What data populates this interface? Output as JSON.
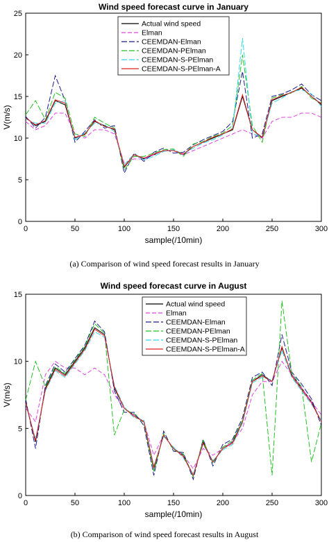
{
  "chart_data": [
    {
      "type": "line",
      "title": "Wind speed forecast curve in January",
      "xlabel": "sample(/10min)",
      "ylabel": "V(m/s)",
      "xlim": [
        0,
        300
      ],
      "ylim": [
        0,
        25
      ],
      "xticks": [
        "0",
        "50",
        "100",
        "150",
        "200",
        "250",
        "300"
      ],
      "yticks": [
        "0",
        "5",
        "10",
        "15",
        "20",
        "25"
      ],
      "grid": false,
      "legend_position": "top-center",
      "caption": "(a) Comparison of wind speed forecast results in January",
      "x": [
        0,
        10,
        20,
        30,
        40,
        50,
        60,
        70,
        80,
        90,
        100,
        110,
        120,
        130,
        140,
        150,
        160,
        170,
        180,
        190,
        200,
        210,
        220,
        230,
        240,
        250,
        260,
        270,
        280,
        290,
        300
      ],
      "series": [
        {
          "name": "Actual wind speed",
          "color": "#000000",
          "dash": "",
          "values": [
            12.5,
            11.5,
            12.0,
            14.5,
            14.0,
            10.0,
            10.5,
            12.0,
            11.5,
            11.0,
            6.5,
            8.0,
            7.5,
            8.0,
            8.5,
            8.5,
            8.0,
            9.0,
            9.5,
            10.0,
            10.5,
            11.0,
            15.0,
            11.0,
            10.0,
            14.5,
            15.0,
            15.5,
            16.0,
            15.0,
            14.0
          ]
        },
        {
          "name": "Elman",
          "color": "#e040e0",
          "dash": "6,3",
          "values": [
            12.0,
            11.0,
            11.5,
            13.0,
            13.0,
            10.5,
            10.0,
            11.0,
            11.0,
            10.5,
            7.0,
            7.5,
            7.5,
            8.0,
            8.5,
            8.5,
            8.0,
            8.5,
            9.0,
            9.5,
            10.0,
            10.5,
            11.0,
            10.5,
            10.0,
            12.0,
            12.5,
            12.5,
            13.0,
            13.0,
            12.5
          ]
        },
        {
          "name": "CEEMDAN-Elman",
          "color": "#1a1a8c",
          "dash": "8,3",
          "values": [
            12.6,
            11.2,
            12.5,
            17.5,
            14.5,
            9.5,
            10.8,
            12.2,
            11.2,
            11.5,
            5.8,
            8.2,
            7.2,
            8.3,
            8.8,
            8.2,
            8.3,
            9.2,
            9.8,
            10.3,
            10.8,
            12.0,
            18.0,
            10.0,
            10.5,
            15.0,
            15.3,
            15.8,
            16.5,
            15.2,
            14.5
          ]
        },
        {
          "name": "CEEMDAN-PElman",
          "color": "#22c022",
          "dash": "8,3",
          "values": [
            12.8,
            14.5,
            12.2,
            15.5,
            14.8,
            10.5,
            10.2,
            12.5,
            11.8,
            11.2,
            6.2,
            7.8,
            7.8,
            8.2,
            8.6,
            8.7,
            7.8,
            9.3,
            9.6,
            10.2,
            10.6,
            11.5,
            20.0,
            11.5,
            9.5,
            14.8,
            15.2,
            15.4,
            16.2,
            14.8,
            14.2
          ]
        },
        {
          "name": "CEEMDAN-S-PElman",
          "color": "#30d8e8",
          "dash": "8,3",
          "values": [
            12.3,
            11.8,
            11.8,
            14.2,
            14.5,
            9.8,
            10.6,
            11.8,
            11.6,
            10.8,
            6.8,
            8.1,
            7.4,
            7.8,
            8.4,
            8.6,
            8.1,
            8.8,
            9.4,
            9.8,
            10.4,
            11.2,
            22.0,
            10.5,
            10.2,
            14.2,
            14.8,
            15.6,
            15.8,
            15.3,
            13.8
          ]
        },
        {
          "name": "CEEMDAN-S-PElman-A",
          "color": "#e02020",
          "dash": "",
          "values": [
            12.4,
            11.6,
            12.1,
            14.6,
            14.2,
            10.1,
            10.4,
            12.1,
            11.4,
            11.1,
            6.6,
            8.0,
            7.6,
            8.1,
            8.5,
            8.5,
            8.1,
            9.0,
            9.5,
            10.1,
            10.5,
            11.1,
            15.2,
            11.0,
            10.1,
            14.6,
            15.1,
            15.5,
            16.1,
            15.0,
            14.1
          ]
        }
      ]
    },
    {
      "type": "line",
      "title": "Wind speed forecast curve in August",
      "xlabel": "sample(/10min)",
      "ylabel": "V(m/s)",
      "xlim": [
        0,
        300
      ],
      "ylim": [
        0,
        15
      ],
      "xticks": [
        "0",
        "50",
        "100",
        "150",
        "200",
        "250",
        "300"
      ],
      "yticks": [
        "0",
        "5",
        "10",
        "15"
      ],
      "grid": false,
      "legend_position": "top-right",
      "caption": "(b) Comparison of wind speed forecast results in August",
      "x": [
        0,
        10,
        20,
        30,
        40,
        50,
        60,
        70,
        80,
        90,
        100,
        110,
        120,
        130,
        140,
        150,
        160,
        170,
        180,
        190,
        200,
        210,
        220,
        230,
        240,
        250,
        260,
        270,
        280,
        290,
        300
      ],
      "series": [
        {
          "name": "Actual wind speed",
          "color": "#000000",
          "dash": "",
          "values": [
            7.0,
            4.0,
            8.0,
            9.5,
            9.0,
            10.0,
            11.0,
            12.5,
            12.0,
            8.0,
            6.5,
            6.0,
            5.5,
            2.0,
            4.5,
            3.5,
            3.0,
            1.5,
            4.0,
            2.5,
            3.5,
            4.0,
            5.5,
            8.5,
            9.0,
            8.5,
            11.0,
            9.0,
            8.0,
            7.0,
            5.5
          ]
        },
        {
          "name": "Elman",
          "color": "#e040e0",
          "dash": "6,3",
          "values": [
            6.5,
            5.5,
            9.0,
            10.0,
            9.5,
            9.5,
            9.0,
            9.5,
            9.0,
            7.5,
            6.5,
            6.0,
            5.5,
            3.0,
            4.5,
            3.5,
            3.0,
            2.0,
            3.5,
            3.0,
            3.5,
            4.0,
            5.0,
            7.5,
            8.5,
            8.5,
            10.0,
            9.0,
            8.0,
            7.0,
            6.0
          ]
        },
        {
          "name": "CEEMDAN-Elman",
          "color": "#1a1a8c",
          "dash": "8,3",
          "values": [
            7.2,
            3.5,
            8.2,
            9.8,
            9.2,
            10.2,
            11.2,
            13.0,
            12.2,
            7.8,
            6.2,
            6.2,
            5.2,
            1.5,
            4.8,
            3.3,
            3.2,
            1.2,
            4.2,
            2.2,
            3.8,
            4.2,
            5.8,
            8.8,
            9.2,
            8.2,
            12.0,
            9.2,
            8.3,
            7.2,
            5.2
          ]
        },
        {
          "name": "CEEMDAN-PElman",
          "color": "#22c022",
          "dash": "8,3",
          "values": [
            7.1,
            10.0,
            8.1,
            9.6,
            9.1,
            10.1,
            11.1,
            12.8,
            12.1,
            4.5,
            6.4,
            6.1,
            5.4,
            1.8,
            4.6,
            3.4,
            3.1,
            1.4,
            4.1,
            2.4,
            3.6,
            4.1,
            5.6,
            8.6,
            9.1,
            1.5,
            14.5,
            9.1,
            8.1,
            2.5,
            5.4
          ]
        },
        {
          "name": "CEEMDAN-S-PElman",
          "color": "#30d8e8",
          "dash": "8,3",
          "values": [
            6.8,
            4.2,
            7.8,
            9.3,
            8.8,
            9.8,
            10.8,
            12.2,
            11.8,
            8.2,
            6.6,
            5.8,
            5.6,
            2.2,
            4.4,
            3.6,
            2.8,
            1.6,
            3.8,
            2.6,
            3.4,
            3.8,
            5.4,
            8.4,
            8.8,
            8.6,
            10.8,
            8.8,
            7.8,
            6.8,
            5.6
          ]
        },
        {
          "name": "CEEMDAN-S-PElman-A",
          "color": "#e02020",
          "dash": "",
          "values": [
            6.9,
            4.1,
            7.9,
            9.4,
            8.9,
            9.9,
            10.9,
            12.4,
            11.9,
            8.1,
            6.5,
            5.9,
            5.5,
            2.1,
            4.5,
            3.5,
            2.9,
            1.5,
            3.9,
            2.5,
            3.5,
            3.9,
            5.5,
            8.5,
            8.9,
            8.5,
            11.1,
            8.9,
            7.9,
            6.9,
            5.5
          ]
        }
      ]
    }
  ]
}
